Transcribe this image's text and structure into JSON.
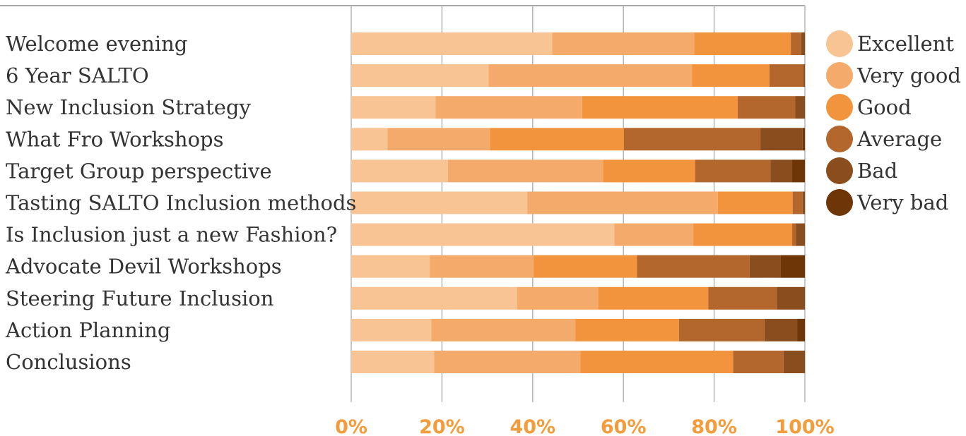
{
  "chart_data": {
    "type": "bar",
    "orientation": "horizontal",
    "stacked": "percent",
    "title": "",
    "xlabel": "",
    "ylabel": "",
    "xlim": [
      0,
      100
    ],
    "x_ticks": [
      "0%",
      "20%",
      "40%",
      "60%",
      "80%",
      "100%"
    ],
    "tick_color": "#f39c3c",
    "grid": true,
    "legend_position": "right",
    "categories": [
      "Welcome evening",
      "6 Year SALTO",
      "New Inclusion Strategy",
      "What Fro Workshops",
      "Target Group perspective",
      "Tasting SALTO Inclusion methods",
      "Is Inclusion just a new Fashion?",
      "Advocate Devil Workshops",
      "Steering Future Inclusion",
      "Action Planning",
      "Conclusions"
    ],
    "series": [
      {
        "name": "Excellent",
        "color": "#f9c493",
        "values": [
          44.3,
          30.3,
          18.6,
          8.0,
          21.3,
          38.8,
          58.0,
          17.3,
          36.6,
          17.6,
          18.3
        ]
      },
      {
        "name": "Very good",
        "color": "#f4aa6a",
        "values": [
          31.3,
          44.8,
          32.3,
          22.6,
          34.2,
          42.0,
          17.4,
          22.9,
          17.8,
          31.7,
          32.2
        ]
      },
      {
        "name": "Good",
        "color": "#f2943e",
        "values": [
          21.3,
          17.1,
          34.3,
          29.5,
          20.3,
          16.5,
          21.8,
          22.8,
          24.3,
          22.8,
          33.7
        ]
      },
      {
        "name": "Average",
        "color": "#b3672c",
        "values": [
          2.3,
          7.5,
          12.7,
          30.1,
          16.6,
          2.2,
          0.8,
          24.8,
          15.1,
          18.8,
          11.1
        ]
      },
      {
        "name": "Bad",
        "color": "#8a4d1d",
        "values": [
          0.8,
          0.3,
          2.1,
          9.3,
          4.8,
          0.5,
          2.0,
          6.9,
          6.2,
          7.2,
          4.7
        ]
      },
      {
        "name": "Very bad",
        "color": "#6e3606",
        "values": [
          0.0,
          0.0,
          0.0,
          0.5,
          2.8,
          0.0,
          0.0,
          5.3,
          0.0,
          1.7,
          0.0
        ]
      }
    ]
  }
}
